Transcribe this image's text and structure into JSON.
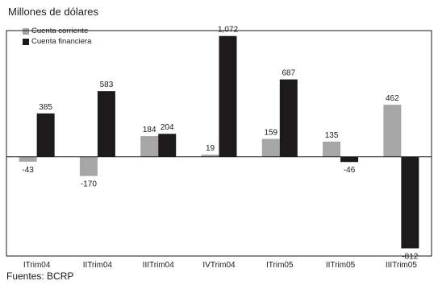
{
  "unit_label": "Millones de dólares",
  "source": "Fuentes: BCRP",
  "colors": {
    "corriente": "#a6a6a6",
    "financiera": "#1c1a1b",
    "frame": "#1a1a1a"
  },
  "chart_data": {
    "type": "bar",
    "categories": [
      "ITrim04",
      "IITrim04",
      "IIITrim04",
      "IVTrim04",
      "ITrim05",
      "IITrim05",
      "IIITrim05"
    ],
    "series": [
      {
        "name": "Cuenta corriente",
        "values": [
          -43,
          -170,
          184,
          19,
          159,
          135,
          462
        ]
      },
      {
        "name": "Cuenta financiera",
        "values": [
          385,
          583,
          204,
          1072,
          687,
          -46,
          -812
        ]
      }
    ],
    "data_labels": [
      [
        "-43",
        "-170",
        "184",
        "19",
        "159",
        "135",
        "462"
      ],
      [
        "385",
        "583",
        "204",
        "1,072",
        "687",
        "-46",
        "-812"
      ]
    ],
    "ylim": [
      -880,
      1120
    ],
    "legend": "top-left",
    "grid": false
  }
}
